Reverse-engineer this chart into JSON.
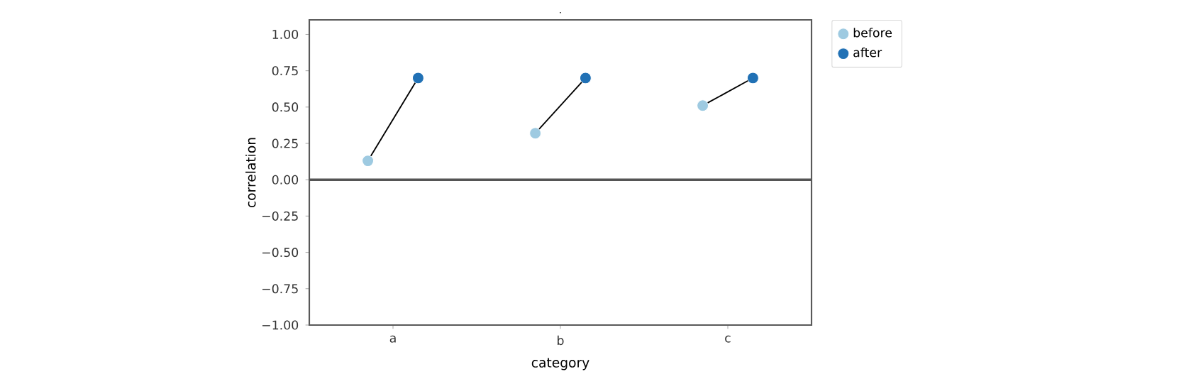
{
  "chart_data": {
    "type": "scatter",
    "title": ".",
    "xlabel": "category",
    "ylabel": "correlation",
    "categories": [
      "a",
      "b",
      "c"
    ],
    "series": [
      {
        "name": "before",
        "color": "#9ecae1",
        "values": [
          0.13,
          0.32,
          0.51
        ]
      },
      {
        "name": "after",
        "color": "#2171b5",
        "values": [
          0.7,
          0.7,
          0.7
        ]
      }
    ],
    "ylim": [
      -1.0,
      1.1
    ],
    "yticks": [
      {
        "value": -1,
        "label": "−1.00"
      },
      {
        "value": -0.75,
        "label": "−0.75"
      },
      {
        "value": -0.5,
        "label": "−0.50"
      },
      {
        "value": -0.25,
        "label": "−0.25"
      },
      {
        "value": 0,
        "label": "0.00"
      },
      {
        "value": 0.25,
        "label": "0.25"
      },
      {
        "value": 0.5,
        "label": "0.50"
      },
      {
        "value": 0.75,
        "label": "0.75"
      },
      {
        "value": 1,
        "label": "1.00"
      }
    ],
    "ref_lines": [
      {
        "axis": "y",
        "value": 0,
        "color": "#555555"
      }
    ],
    "grid": false,
    "legend": "top right",
    "marker": "circle"
  }
}
